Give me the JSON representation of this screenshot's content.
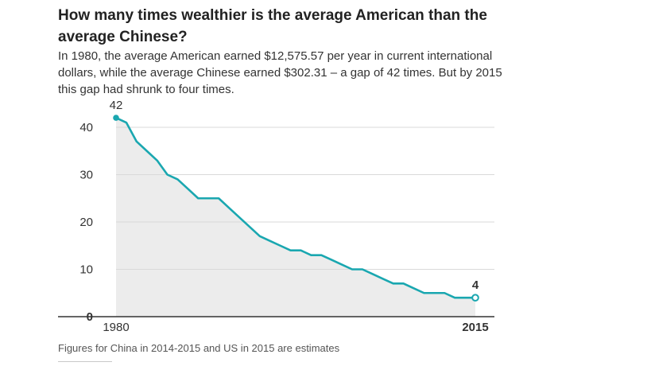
{
  "header": {
    "title": "How many times wealthier is the average American than the average Chinese?",
    "subtitle": "In 1980, the average American earned $12,575.57 per year in current international dollars, while the average Chinese earned $302.31 – a gap of 42 times. But by 2015 this gap had shrunk to four times."
  },
  "footnote": "Figures for China in 2014-2015 and US in 2015 are estimates",
  "colors": {
    "line": "#1aa7b0",
    "area": "#ececec",
    "grid": "#d9d9d9",
    "axis": "#333333"
  },
  "chart_data": {
    "type": "area",
    "title": "How many times wealthier is the average American than the average Chinese?",
    "xlabel": "",
    "ylabel": "",
    "x": [
      1980,
      1981,
      1982,
      1983,
      1984,
      1985,
      1986,
      1987,
      1988,
      1989,
      1990,
      1991,
      1992,
      1993,
      1994,
      1995,
      1996,
      1997,
      1998,
      1999,
      2000,
      2001,
      2002,
      2003,
      2004,
      2005,
      2006,
      2007,
      2008,
      2009,
      2010,
      2011,
      2012,
      2013,
      2014,
      2015
    ],
    "series": [
      {
        "values": [
          42,
          41,
          37,
          35,
          33,
          30,
          29,
          27,
          25,
          25,
          25,
          23,
          21,
          19,
          17,
          16,
          15,
          14,
          14,
          13,
          13,
          12,
          11,
          10,
          10,
          9,
          8,
          7,
          7,
          6,
          5,
          5,
          5,
          4,
          4,
          4
        ]
      }
    ],
    "xlim": [
      1980,
      2015
    ],
    "ylim": [
      0,
      40
    ],
    "yticks": [
      0,
      10,
      20,
      30,
      40
    ],
    "xticks": [
      {
        "value": 1980,
        "label": "1980",
        "bold": false
      },
      {
        "value": 2015,
        "label": "2015",
        "bold": true
      }
    ],
    "annotations": [
      {
        "x": 1980,
        "y": 42,
        "text": "42",
        "marker": "filled"
      },
      {
        "x": 2015,
        "y": 4,
        "text": "4",
        "marker": "open"
      }
    ],
    "grid": true
  }
}
